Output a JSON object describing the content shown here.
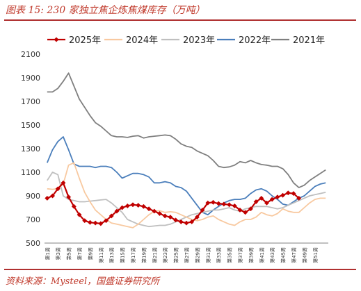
{
  "header": {
    "title": "图表 15: 230 家独立焦企炼焦煤库存（万吨）"
  },
  "footer": {
    "source": "资料来源：Mysteel，国盛证券研究所"
  },
  "chart_data": {
    "type": "line",
    "title": "",
    "xlabel": "",
    "ylabel": "",
    "ylim": [
      500,
      2100
    ],
    "yticks": [
      500,
      700,
      900,
      1100,
      1300,
      1500,
      1700,
      1900,
      2100
    ],
    "x": [
      1,
      2,
      3,
      4,
      5,
      6,
      7,
      8,
      9,
      10,
      11,
      12,
      13,
      14,
      15,
      16,
      17,
      18,
      19,
      20,
      21,
      22,
      23,
      24,
      25,
      26,
      27,
      28,
      29,
      30,
      31,
      32,
      33,
      34,
      35,
      36,
      37,
      38,
      39,
      40,
      41,
      42,
      43,
      44,
      45,
      46,
      47,
      48,
      49,
      50,
      51,
      52,
      53
    ],
    "xtick_labels": [
      "第1周",
      "第3周",
      "第5周",
      "第7周",
      "第9周",
      "第11周",
      "第13周",
      "第15周",
      "第17周",
      "第19周",
      "第21周",
      "第23周",
      "第25周",
      "第27周",
      "第29周",
      "第31周",
      "第33周",
      "第35周",
      "第37周",
      "第39周",
      "第41周",
      "第43周",
      "第45周",
      "第47周",
      "第49周",
      "第51周"
    ],
    "legend_position": "top",
    "grid": false,
    "colors": {
      "2025年": "#c00000",
      "2024年": "#f8c9a0",
      "2023年": "#bfbfbf",
      "2022年": "#4a7ebb",
      "2021年": "#7f7f7f"
    },
    "series": [
      {
        "name": "2025年",
        "marker": "diamond",
        "values": [
          880,
          900,
          960,
          1010,
          890,
          810,
          740,
          690,
          675,
          670,
          665,
          690,
          730,
          770,
          800,
          815,
          825,
          820,
          810,
          790,
          770,
          750,
          730,
          720,
          695,
          680,
          670,
          680,
          720,
          780,
          840,
          845,
          835,
          830,
          825,
          815,
          780,
          760,
          790,
          850,
          880,
          840,
          870,
          890,
          905,
          925,
          920,
          880,
          null,
          null,
          null,
          null,
          null
        ]
      },
      {
        "name": "2024年",
        "values": [
          960,
          955,
          960,
          1000,
          1160,
          1180,
          1050,
          930,
          850,
          780,
          740,
          700,
          670,
          660,
          650,
          640,
          630,
          660,
          700,
          740,
          770,
          775,
          760,
          765,
          760,
          740,
          720,
          700,
          690,
          700,
          720,
          730,
          700,
          680,
          660,
          650,
          680,
          700,
          700,
          720,
          760,
          740,
          730,
          750,
          790,
          770,
          760,
          760,
          800,
          840,
          870,
          880,
          880
        ]
      },
      {
        "name": "2023年",
        "values": [
          1030,
          1100,
          1080,
          900,
          870,
          860,
          850,
          850,
          855,
          860,
          865,
          870,
          840,
          800,
          760,
          700,
          680,
          660,
          650,
          640,
          645,
          650,
          650,
          660,
          680,
          700,
          720,
          740,
          750,
          760,
          770,
          780,
          780,
          790,
          800,
          780,
          770,
          790,
          800,
          810,
          810,
          810,
          800,
          790,
          800,
          820,
          840,
          860,
          880,
          900,
          910,
          920,
          930
        ]
      },
      {
        "name": "2022年",
        "values": [
          1180,
          1290,
          1360,
          1400,
          1290,
          1170,
          1150,
          1150,
          1150,
          1140,
          1150,
          1150,
          1140,
          1100,
          1050,
          1070,
          1090,
          1090,
          1080,
          1060,
          1010,
          1010,
          1020,
          1010,
          980,
          970,
          940,
          880,
          820,
          760,
          740,
          780,
          810,
          840,
          860,
          870,
          870,
          880,
          920,
          950,
          960,
          940,
          900,
          870,
          830,
          820,
          850,
          880,
          900,
          940,
          980,
          1000,
          1010
        ]
      },
      {
        "name": "2021年",
        "values": [
          1780,
          1780,
          1810,
          1870,
          1940,
          1830,
          1720,
          1650,
          1580,
          1520,
          1490,
          1450,
          1410,
          1400,
          1400,
          1395,
          1405,
          1410,
          1390,
          1400,
          1405,
          1410,
          1415,
          1410,
          1380,
          1340,
          1320,
          1310,
          1280,
          1260,
          1240,
          1200,
          1150,
          1140,
          1145,
          1160,
          1190,
          1180,
          1200,
          1180,
          1165,
          1160,
          1150,
          1150,
          1130,
          1080,
          1010,
          970,
          990,
          1030,
          1060,
          1090,
          1120
        ]
      }
    ]
  }
}
